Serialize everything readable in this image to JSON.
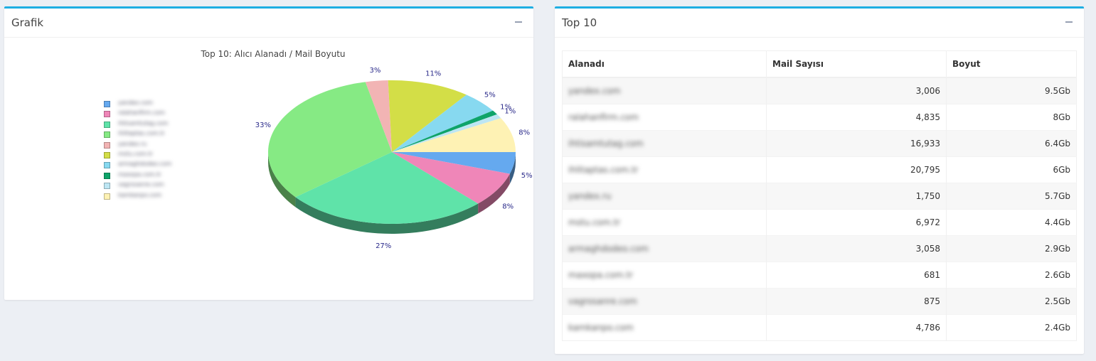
{
  "panels": {
    "chart_title": "Grafik",
    "table_title": "Top 10"
  },
  "chart_data": {
    "type": "pie",
    "title": "Top 10: Alıcı Alanadı / Mail Boyutu",
    "style": "3d",
    "legend_position": "left",
    "slices": [
      {
        "label": "yandex.com",
        "percent": 5,
        "color": "#65a9ef"
      },
      {
        "label": "ralahanfirm.com",
        "percent": 8,
        "color": "#ef86b8"
      },
      {
        "label": "ihtisamtutag.com",
        "percent": 27,
        "color": "#5fe3a9"
      },
      {
        "label": "ihlitaptas.com.tr",
        "percent": 33,
        "color": "#86ea84"
      },
      {
        "label": "yandex.ru",
        "percent": 3,
        "color": "#f2b4b4"
      },
      {
        "label": "mstu.com.tr",
        "percent": 11,
        "color": "#d3de47"
      },
      {
        "label": "armaghdodeo.com",
        "percent": 5,
        "color": "#87d9f0"
      },
      {
        "label": "maxopa.com.tr",
        "percent": 1,
        "color": "#0ea46a"
      },
      {
        "label": "vagrosanre.com",
        "percent": 1,
        "color": "#bde6f3"
      },
      {
        "label": "kamkanpo.com",
        "percent": 8,
        "color": "#fef2b4"
      }
    ]
  },
  "table": {
    "headers": [
      "Alanadı",
      "Mail Sayısı",
      "Boyut"
    ],
    "rows": [
      [
        "yandex.com",
        "3,006",
        "9.5Gb"
      ],
      [
        "ralahanfirm.com",
        "4,835",
        "8Gb"
      ],
      [
        "ihtisamtutag.com",
        "16,933",
        "6.4Gb"
      ],
      [
        "ihlitaptas.com.tr",
        "20,795",
        "6Gb"
      ],
      [
        "yandex.ru",
        "1,750",
        "5.7Gb"
      ],
      [
        "mstu.com.tr",
        "6,972",
        "4.4Gb"
      ],
      [
        "armaghdodeo.com",
        "3,058",
        "2.9Gb"
      ],
      [
        "maxopa.com.tr",
        "681",
        "2.6Gb"
      ],
      [
        "vagrosanre.com",
        "875",
        "2.5Gb"
      ],
      [
        "kamkanpo.com",
        "4,786",
        "2.4Gb"
      ]
    ]
  }
}
